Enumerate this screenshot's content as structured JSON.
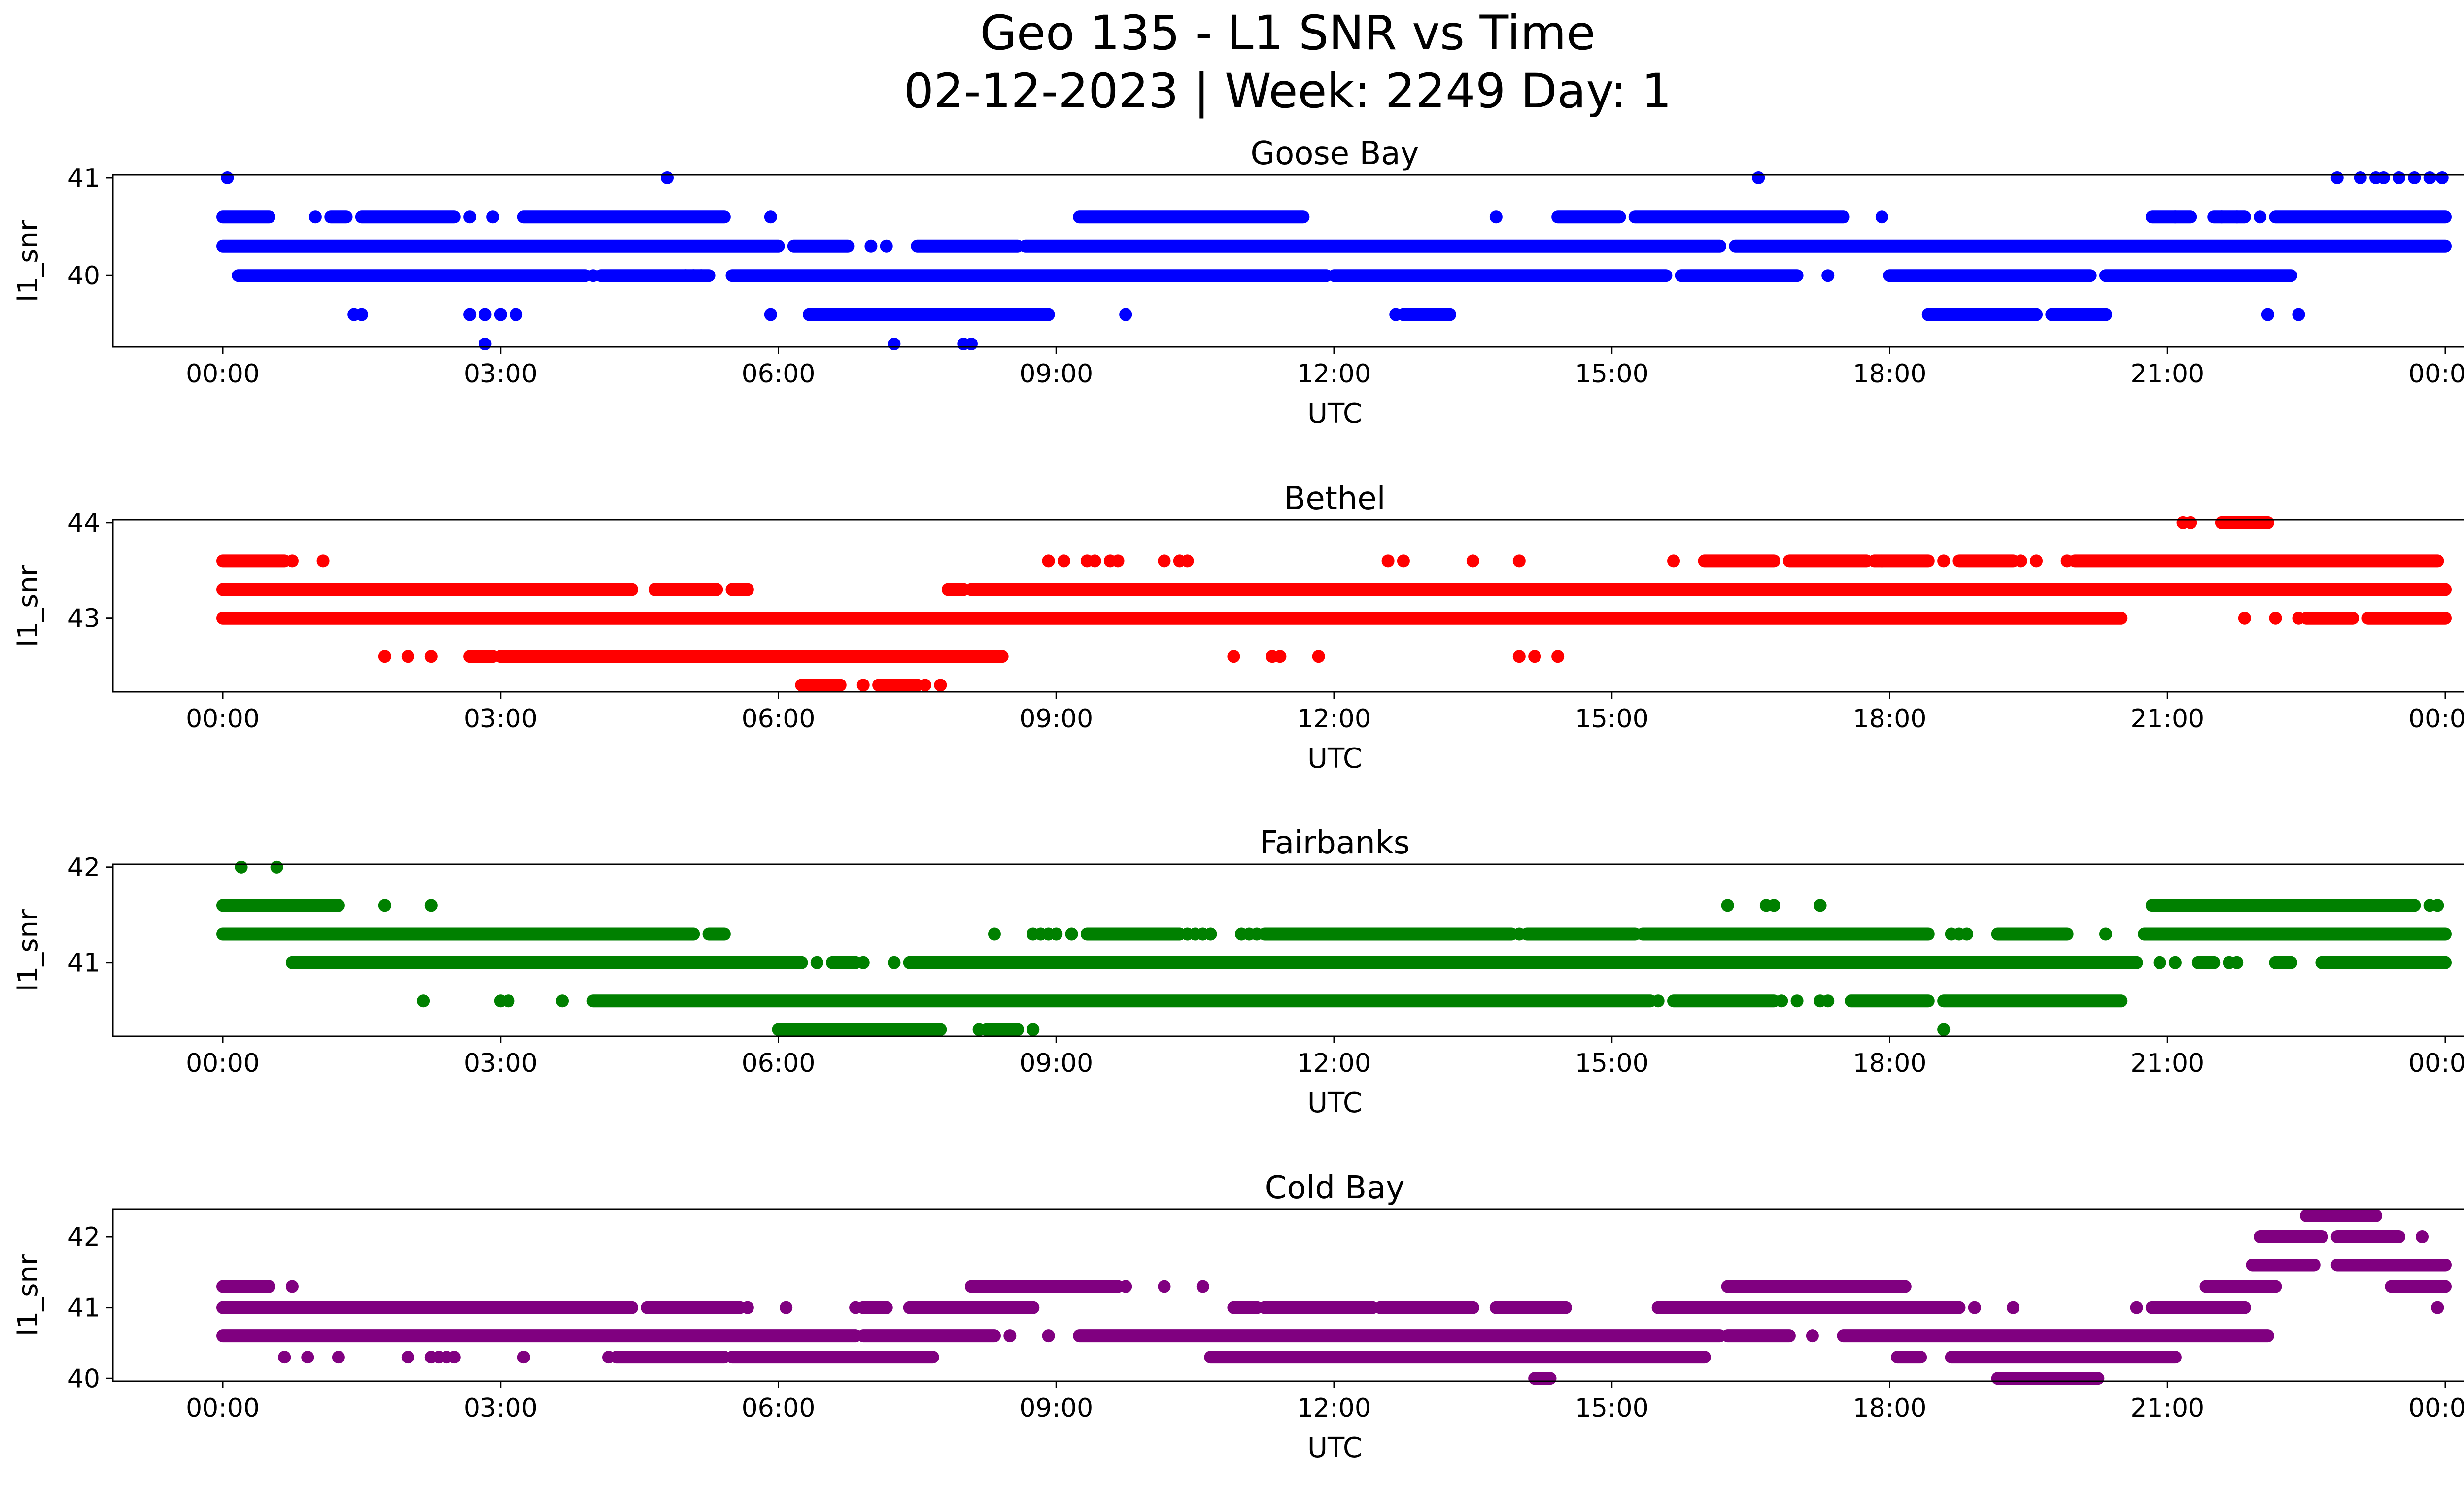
{
  "figure": {
    "title_line1": "Geo 135 - L1 SNR vs Time",
    "title_line2": "02-12-2023 | Week: 2249 Day: 1"
  },
  "chart_data": [
    {
      "type": "scatter",
      "title": "Goose Bay",
      "xlabel": "UTC",
      "ylabel": "l1_snr",
      "color": "#0000ff",
      "xlim": [
        "00:00",
        "24:00"
      ],
      "ylim": [
        39.27,
        41.03
      ],
      "xticks": [
        "00:00",
        "03:00",
        "06:00",
        "09:00",
        "12:00",
        "15:00",
        "18:00",
        "21:00",
        "00:00"
      ],
      "yticks": [
        40,
        41
      ],
      "series": [
        {
          "y": 41.0,
          "ranges": [],
          "points": [
            "00:03",
            "04:48",
            "16:35",
            "22:50",
            "23:05",
            "23:15",
            "23:20",
            "23:30",
            "23:40",
            "23:50",
            "23:58"
          ]
        },
        {
          "y": 40.6,
          "ranges": [
            [
              "00:00",
              "00:30"
            ],
            [
              "01:10",
              "01:20"
            ],
            [
              "01:30",
              "02:30"
            ],
            [
              "03:15",
              "05:25"
            ],
            [
              "09:15",
              "11:40"
            ],
            [
              "14:25",
              "15:05"
            ],
            [
              "15:15",
              "17:30"
            ],
            [
              "20:50",
              "21:15"
            ],
            [
              "21:30",
              "21:50"
            ],
            [
              "22:10",
              "24:00"
            ]
          ],
          "points": [
            "01:00",
            "02:40",
            "02:55",
            "05:55",
            "13:45",
            "17:55",
            "21:05",
            "21:35",
            "21:45",
            "22:00"
          ]
        },
        {
          "y": 40.3,
          "ranges": [
            [
              "00:00",
              "06:00"
            ],
            [
              "06:10",
              "06:45"
            ],
            [
              "07:30",
              "08:35"
            ],
            [
              "08:40",
              "16:10"
            ],
            [
              "16:20",
              "24:00"
            ]
          ],
          "points": [
            "07:00",
            "07:10"
          ]
        },
        {
          "y": 40.0,
          "ranges": [
            [
              "00:10",
              "03:55"
            ],
            [
              "04:05",
              "05:00"
            ],
            [
              "05:00",
              "05:15"
            ],
            [
              "05:30",
              "11:55"
            ],
            [
              "12:00",
              "15:35"
            ],
            [
              "15:45",
              "17:00"
            ],
            [
              "18:00",
              "20:10"
            ],
            [
              "20:20",
              "22:20"
            ]
          ],
          "points": [
            "04:00",
            "05:05",
            "05:10",
            "17:20"
          ]
        },
        {
          "y": 39.6,
          "ranges": [
            [
              "06:20",
              "08:55"
            ],
            [
              "12:45",
              "13:15"
            ],
            [
              "18:25",
              "19:35"
            ],
            [
              "19:45",
              "20:20"
            ]
          ],
          "points": [
            "01:25",
            "01:30",
            "02:40",
            "02:50",
            "03:00",
            "03:10",
            "05:55",
            "09:45",
            "12:40",
            "22:05",
            "22:25"
          ]
        },
        {
          "y": 39.3,
          "ranges": [],
          "points": [
            "02:50",
            "07:15",
            "08:00",
            "08:05"
          ]
        }
      ]
    },
    {
      "type": "scatter",
      "title": "Bethel",
      "xlabel": "UTC",
      "ylabel": "l1_snr",
      "color": "#ff0000",
      "xlim": [
        "00:00",
        "24:00"
      ],
      "ylim": [
        42.23,
        44.03
      ],
      "xticks": [
        "00:00",
        "03:00",
        "06:00",
        "09:00",
        "12:00",
        "15:00",
        "18:00",
        "21:00",
        "00:00"
      ],
      "yticks": [
        43,
        44
      ],
      "series": [
        {
          "y": 44.0,
          "ranges": [
            [
              "21:35",
              "22:05"
            ]
          ],
          "points": [
            "21:10",
            "21:15"
          ]
        },
        {
          "y": 43.6,
          "ranges": [
            [
              "00:00",
              "00:40"
            ],
            [
              "16:00",
              "16:45"
            ],
            [
              "16:55",
              "17:45"
            ],
            [
              "17:50",
              "18:25"
            ],
            [
              "18:45",
              "19:20"
            ],
            [
              "20:00",
              "23:55"
            ]
          ],
          "points": [
            "00:45",
            "01:05",
            "08:55",
            "09:05",
            "09:20",
            "09:25",
            "09:35",
            "09:40",
            "10:10",
            "10:20",
            "10:25",
            "12:35",
            "12:45",
            "13:30",
            "14:00",
            "15:40",
            "17:55",
            "18:35",
            "19:25",
            "19:35",
            "19:55"
          ]
        },
        {
          "y": 43.3,
          "ranges": [
            [
              "00:00",
              "04:25"
            ],
            [
              "04:40",
              "05:20"
            ],
            [
              "05:30",
              "05:40"
            ],
            [
              "07:50",
              "08:00"
            ],
            [
              "08:05",
              "24:00"
            ]
          ],
          "points": []
        },
        {
          "y": 43.0,
          "ranges": [
            [
              "00:00",
              "20:30"
            ],
            [
              "22:30",
              "23:00"
            ],
            [
              "23:10",
              "24:00"
            ]
          ],
          "points": [
            "21:50",
            "22:10",
            "22:25"
          ]
        },
        {
          "y": 42.6,
          "ranges": [
            [
              "02:40",
              "02:55"
            ],
            [
              "03:00",
              "08:25"
            ]
          ],
          "points": [
            "01:45",
            "02:00",
            "02:15",
            "10:55",
            "11:20",
            "11:25",
            "11:50",
            "14:00",
            "14:10",
            "14:25"
          ]
        },
        {
          "y": 42.3,
          "ranges": [
            [
              "06:15",
              "06:40"
            ],
            [
              "07:05",
              "07:30"
            ]
          ],
          "points": [
            "06:55",
            "07:35",
            "07:45"
          ]
        }
      ]
    },
    {
      "type": "scatter",
      "title": "Fairbanks",
      "xlabel": "UTC",
      "ylabel": "l1_snr",
      "color": "#008000",
      "xlim": [
        "00:00",
        "24:00"
      ],
      "ylim": [
        40.23,
        42.03
      ],
      "xticks": [
        "00:00",
        "03:00",
        "06:00",
        "09:00",
        "12:00",
        "15:00",
        "18:00",
        "21:00",
        "00:00"
      ],
      "yticks": [
        41,
        42
      ],
      "series": [
        {
          "y": 42.0,
          "ranges": [],
          "points": [
            "00:12",
            "00:35"
          ]
        },
        {
          "y": 41.6,
          "ranges": [
            [
              "00:00",
              "01:15"
            ],
            [
              "20:50",
              "23:40"
            ]
          ],
          "points": [
            "01:45",
            "02:15",
            "16:15",
            "16:40",
            "16:45",
            "17:15",
            "23:50",
            "23:55"
          ]
        },
        {
          "y": 41.3,
          "ranges": [
            [
              "00:00",
              "05:05"
            ],
            [
              "05:15",
              "05:25"
            ],
            [
              "09:20",
              "10:20"
            ],
            [
              "11:15",
              "13:55"
            ],
            [
              "14:05",
              "15:15"
            ],
            [
              "15:20",
              "18:25"
            ],
            [
              "19:10",
              "19:55"
            ],
            [
              "20:45",
              "24:00"
            ]
          ],
          "points": [
            "08:20",
            "08:45",
            "08:50",
            "08:55",
            "09:00",
            "09:10",
            "10:25",
            "10:30",
            "10:35",
            "10:40",
            "11:00",
            "11:05",
            "11:10",
            "14:00",
            "14:10",
            "18:40",
            "18:45",
            "18:50",
            "20:20"
          ]
        },
        {
          "y": 41.0,
          "ranges": [
            [
              "00:45",
              "06:15"
            ],
            [
              "06:35",
              "06:50"
            ],
            [
              "07:25",
              "20:40"
            ],
            [
              "21:20",
              "21:30"
            ],
            [
              "22:10",
              "22:20"
            ],
            [
              "22:40",
              "24:00"
            ]
          ],
          "points": [
            "06:25",
            "06:55",
            "07:15",
            "20:55",
            "21:05",
            "21:40",
            "21:45"
          ]
        },
        {
          "y": 40.6,
          "ranges": [
            [
              "04:00",
              "15:25"
            ],
            [
              "15:40",
              "16:45"
            ],
            [
              "17:35",
              "18:25"
            ],
            [
              "18:35",
              "20:30"
            ]
          ],
          "points": [
            "02:10",
            "03:00",
            "03:05",
            "03:40",
            "15:30",
            "16:50",
            "17:00",
            "17:15",
            "17:20"
          ]
        },
        {
          "y": 40.3,
          "ranges": [
            [
              "06:00",
              "07:45"
            ],
            [
              "08:15",
              "08:35"
            ]
          ],
          "points": [
            "08:10",
            "08:45",
            "18:35"
          ]
        }
      ]
    },
    {
      "type": "scatter",
      "title": "Cold Bay",
      "xlabel": "UTC",
      "ylabel": "l1_snr",
      "color": "#800080",
      "xlim": [
        "00:00",
        "24:00"
      ],
      "ylim": [
        39.96,
        42.39
      ],
      "xticks": [
        "00:00",
        "03:00",
        "06:00",
        "09:00",
        "12:00",
        "15:00",
        "18:00",
        "21:00",
        "00:00"
      ],
      "yticks": [
        40,
        41,
        42
      ],
      "series": [
        {
          "y": 42.3,
          "ranges": [
            [
              "22:30",
              "23:15"
            ]
          ],
          "points": []
        },
        {
          "y": 42.0,
          "ranges": [
            [
              "22:00",
              "22:40"
            ],
            [
              "22:50",
              "23:30"
            ]
          ],
          "points": [
            "23:45"
          ]
        },
        {
          "y": 41.6,
          "ranges": [
            [
              "21:55",
              "22:35"
            ],
            [
              "22:50",
              "24:00"
            ]
          ],
          "points": []
        },
        {
          "y": 41.3,
          "ranges": [
            [
              "00:00",
              "00:30"
            ],
            [
              "08:05",
              "09:40"
            ],
            [
              "16:15",
              "18:10"
            ],
            [
              "21:25",
              "22:10"
            ],
            [
              "23:25",
              "24:00"
            ]
          ],
          "points": [
            "00:45",
            "09:45",
            "10:10",
            "10:35"
          ]
        },
        {
          "y": 41.0,
          "ranges": [
            [
              "00:00",
              "04:25"
            ],
            [
              "04:35",
              "05:35"
            ],
            [
              "06:55",
              "07:10"
            ],
            [
              "07:25",
              "08:45"
            ],
            [
              "10:55",
              "11:10"
            ],
            [
              "11:15",
              "12:25"
            ],
            [
              "12:30",
              "13:30"
            ],
            [
              "13:45",
              "14:30"
            ],
            [
              "15:30",
              "18:45"
            ],
            [
              "20:50",
              "21:50"
            ]
          ],
          "points": [
            "05:40",
            "06:05",
            "06:50",
            "18:55",
            "19:20",
            "20:40",
            "23:55"
          ]
        },
        {
          "y": 40.6,
          "ranges": [
            [
              "00:00",
              "06:50"
            ],
            [
              "06:55",
              "08:20"
            ],
            [
              "09:15",
              "16:10"
            ],
            [
              "16:15",
              "16:55"
            ],
            [
              "17:30",
              "22:05"
            ]
          ],
          "points": [
            "08:30",
            "08:55",
            "17:10"
          ]
        },
        {
          "y": 40.3,
          "ranges": [
            [
              "04:15",
              "05:25"
            ],
            [
              "05:30",
              "07:40"
            ],
            [
              "10:40",
              "16:00"
            ],
            [
              "18:05",
              "18:20"
            ],
            [
              "18:40",
              "21:05"
            ]
          ],
          "points": [
            "00:40",
            "00:55",
            "01:15",
            "02:00",
            "02:15",
            "02:20",
            "02:25",
            "02:30",
            "03:15",
            "04:10"
          ]
        },
        {
          "y": 40.0,
          "ranges": [
            [
              "14:10",
              "14:20"
            ],
            [
              "19:10",
              "20:15"
            ]
          ],
          "points": []
        }
      ]
    }
  ]
}
